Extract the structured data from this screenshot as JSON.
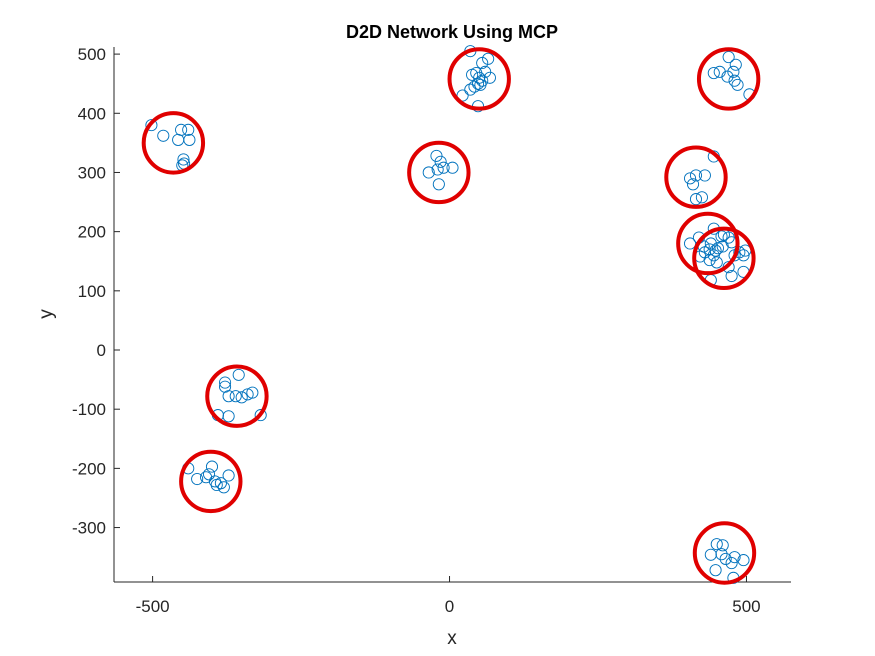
{
  "chart_data": {
    "type": "scatter",
    "title": "D2D Network Using MCP",
    "xlabel": "x",
    "ylabel": "y",
    "xlim": [
      -565,
      575
    ],
    "ylim": [
      -392,
      512
    ],
    "xticks": [
      "-500",
      "0",
      "500"
    ],
    "xtick_values": [
      -500,
      0,
      500
    ],
    "yticks": [
      "500",
      "400",
      "300",
      "200",
      "100",
      "0",
      "-100",
      "-200",
      "-300"
    ],
    "ytick_values": [
      500,
      400,
      300,
      200,
      100,
      0,
      -100,
      -200,
      -300
    ],
    "grid": false,
    "legend": "none",
    "colors": {
      "points": "#0072BD",
      "clusters": "#E00000",
      "axes": "#262626"
    },
    "clusters": [
      {
        "center": [
          -465,
          350
        ],
        "radius": 50
      },
      {
        "center": [
          -18,
          300
        ],
        "radius": 50
      },
      {
        "center": [
          50,
          458
        ],
        "radius": 50
      },
      {
        "center": [
          470,
          458
        ],
        "radius": 50
      },
      {
        "center": [
          415,
          292
        ],
        "radius": 50
      },
      {
        "center": [
          435,
          180
        ],
        "radius": 50
      },
      {
        "center": [
          462,
          155
        ],
        "radius": 50
      },
      {
        "center": [
          -358,
          -78
        ],
        "radius": 50
      },
      {
        "center": [
          -402,
          -222
        ],
        "radius": 50
      },
      {
        "center": [
          463,
          -343
        ],
        "radius": 50
      }
    ],
    "points": [
      [
        -502,
        380
      ],
      [
        -482,
        362
      ],
      [
        -457,
        355
      ],
      [
        -452,
        372
      ],
      [
        -440,
        372
      ],
      [
        -438,
        355
      ],
      [
        -448,
        322
      ],
      [
        -447,
        315
      ],
      [
        -450,
        312
      ],
      [
        -22,
        328
      ],
      [
        -15,
        318
      ],
      [
        -35,
        300
      ],
      [
        -20,
        305
      ],
      [
        -10,
        308
      ],
      [
        5,
        308
      ],
      [
        -18,
        280
      ],
      [
        35,
        505
      ],
      [
        55,
        485
      ],
      [
        65,
        492
      ],
      [
        38,
        465
      ],
      [
        50,
        460
      ],
      [
        42,
        445
      ],
      [
        48,
        450
      ],
      [
        55,
        455
      ],
      [
        60,
        470
      ],
      [
        45,
        468
      ],
      [
        68,
        460
      ],
      [
        22,
        430
      ],
      [
        48,
        412
      ],
      [
        35,
        440
      ],
      [
        52,
        448
      ],
      [
        470,
        495
      ],
      [
        482,
        482
      ],
      [
        478,
        470
      ],
      [
        455,
        470
      ],
      [
        445,
        468
      ],
      [
        468,
        462
      ],
      [
        480,
        455
      ],
      [
        485,
        448
      ],
      [
        505,
        432
      ],
      [
        445,
        327
      ],
      [
        415,
        295
      ],
      [
        430,
        295
      ],
      [
        405,
        290
      ],
      [
        410,
        280
      ],
      [
        425,
        258
      ],
      [
        415,
        255
      ],
      [
        405,
        180
      ],
      [
        420,
        190
      ],
      [
        445,
        205
      ],
      [
        428,
        175
      ],
      [
        440,
        180
      ],
      [
        438,
        170
      ],
      [
        430,
        165
      ],
      [
        448,
        168
      ],
      [
        452,
        172
      ],
      [
        460,
        175
      ],
      [
        470,
        190
      ],
      [
        475,
        182
      ],
      [
        458,
        192
      ],
      [
        462,
        195
      ],
      [
        445,
        160
      ],
      [
        438,
        152
      ],
      [
        450,
        148
      ],
      [
        422,
        158
      ],
      [
        440,
        118
      ],
      [
        488,
        165
      ],
      [
        495,
        160
      ],
      [
        498,
        168
      ],
      [
        480,
        160
      ],
      [
        470,
        140
      ],
      [
        475,
        125
      ],
      [
        495,
        132
      ],
      [
        -355,
        -42
      ],
      [
        -378,
        -62
      ],
      [
        -378,
        -55
      ],
      [
        -372,
        -78
      ],
      [
        -350,
        -80
      ],
      [
        -360,
        -78
      ],
      [
        -340,
        -75
      ],
      [
        -332,
        -72
      ],
      [
        -372,
        -112
      ],
      [
        -390,
        -110
      ],
      [
        -318,
        -110
      ],
      [
        -440,
        -200
      ],
      [
        -400,
        -197
      ],
      [
        -372,
        -212
      ],
      [
        -405,
        -210
      ],
      [
        -410,
        -215
      ],
      [
        -395,
        -222
      ],
      [
        -385,
        -225
      ],
      [
        -392,
        -228
      ],
      [
        -380,
        -232
      ],
      [
        -425,
        -218
      ],
      [
        450,
        -328
      ],
      [
        460,
        -330
      ],
      [
        480,
        -350
      ],
      [
        465,
        -353
      ],
      [
        495,
        -355
      ],
      [
        440,
        -346
      ],
      [
        458,
        -345
      ],
      [
        475,
        -360
      ],
      [
        448,
        -372
      ],
      [
        478,
        -385
      ]
    ]
  }
}
